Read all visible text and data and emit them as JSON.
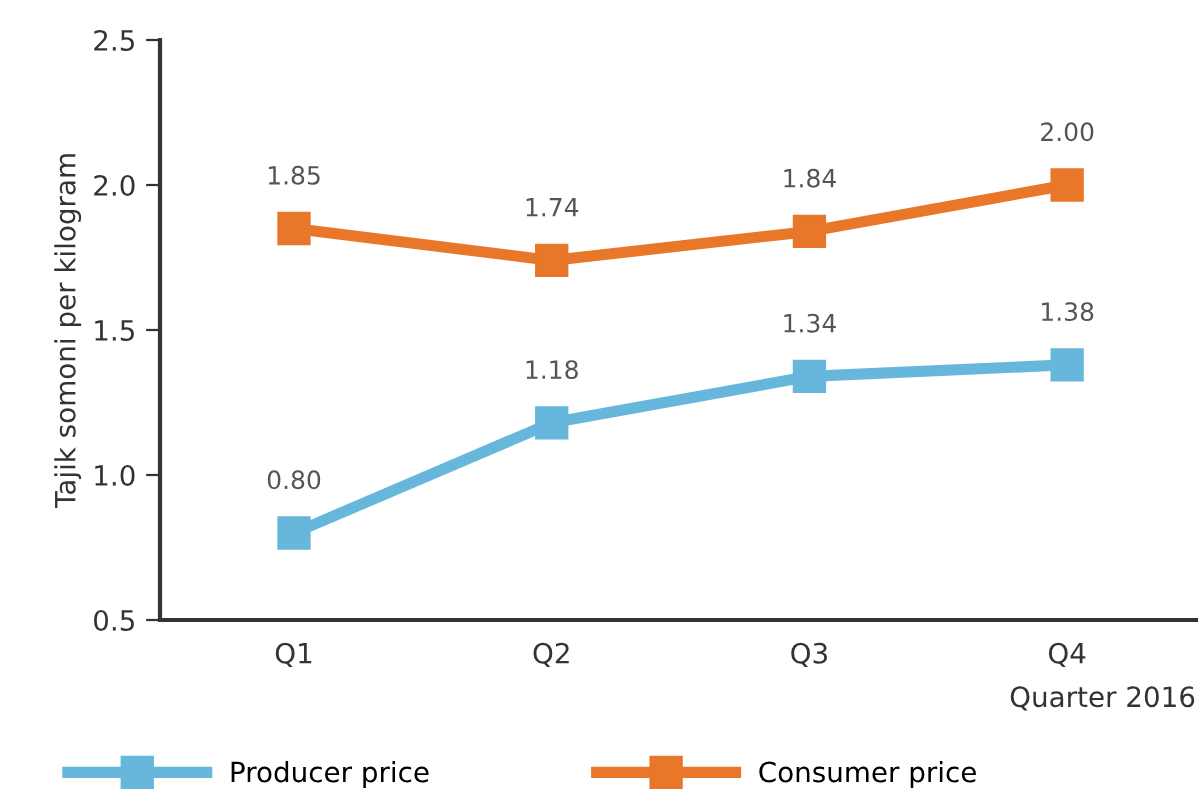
{
  "chart_data": {
    "type": "line",
    "xlabel": "Quarter 2016",
    "ylabel": "Tajik somoni per kilogram",
    "categories": [
      "Q1",
      "Q2",
      "Q3",
      "Q4"
    ],
    "series": [
      {
        "name": "Producer price",
        "color": "#67b7dc",
        "values": [
          0.8,
          1.18,
          1.34,
          1.38
        ],
        "value_labels": [
          "0.80",
          "1.18",
          "1.34",
          "1.38"
        ]
      },
      {
        "name": "Consumer price",
        "color": "#e8772a",
        "values": [
          1.85,
          1.74,
          1.84,
          2.0
        ],
        "value_labels": [
          "1.85",
          "1.74",
          "1.84",
          "2.00"
        ]
      }
    ],
    "ylim": [
      0.5,
      2.5
    ],
    "yticks": [
      {
        "value": 0.5,
        "label": "0.5"
      },
      {
        "value": 1.0,
        "label": "1.0"
      },
      {
        "value": 1.5,
        "label": "1.5"
      },
      {
        "value": 2.0,
        "label": "2.0"
      },
      {
        "value": 2.5,
        "label": "2.5"
      }
    ],
    "marker": "square",
    "line_style": "solid",
    "grid": false,
    "legend": "bottom"
  }
}
